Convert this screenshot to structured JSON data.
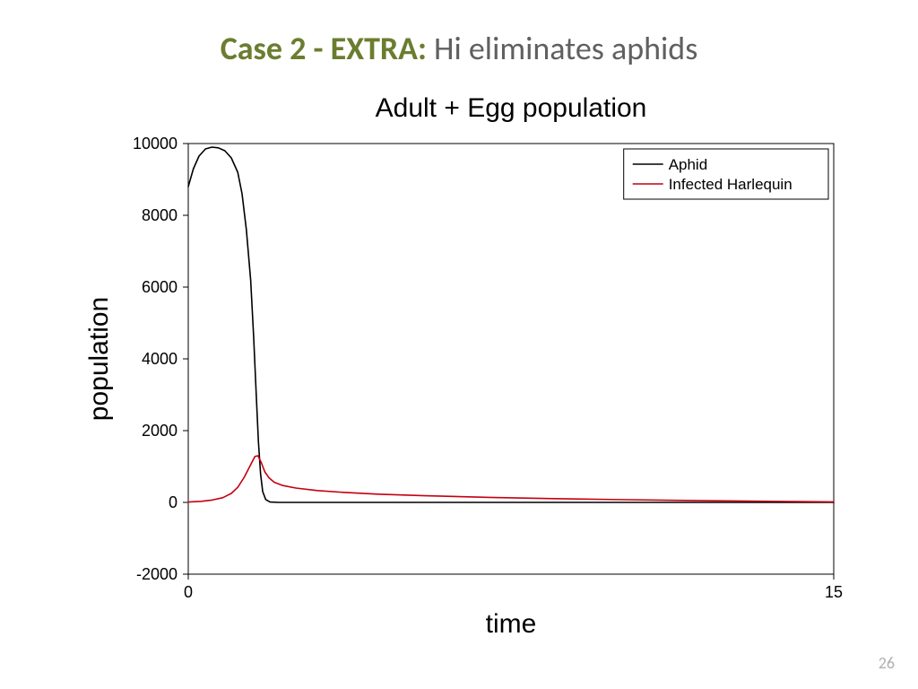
{
  "slide": {
    "title_accent": "Case 2 - EXTRA:",
    "title_rest": " Hi eliminates aphids",
    "accent_color": "#6b7d2f",
    "text_color": "#606060",
    "page_number": "26"
  },
  "chart": {
    "type": "line",
    "title": "Adult + Egg population",
    "title_fontsize": 30,
    "title_fontfamily": "Arial, Helvetica, sans-serif",
    "xlabel": "time",
    "ylabel": "population",
    "label_fontsize": 30,
    "tick_fontsize": 18,
    "tick_fontfamily": "Arial, Helvetica, sans-serif",
    "background_color": "#ffffff",
    "axis_color": "#000000",
    "box_linewidth": 1,
    "line_width": 1.6,
    "xlim": [
      0,
      15
    ],
    "ylim": [
      -2000,
      10000
    ],
    "xticks": [
      0,
      15
    ],
    "yticks": [
      -2000,
      0,
      2000,
      4000,
      6000,
      8000,
      10000
    ],
    "legend": {
      "position": "top-right",
      "border_color": "#000000",
      "bg": "#ffffff",
      "fontsize": 17,
      "items": [
        {
          "label": "Aphid",
          "color": "#000000"
        },
        {
          "label": "Infected Harlequin",
          "color": "#c4000f"
        }
      ]
    },
    "series": [
      {
        "name": "Aphid",
        "color": "#000000",
        "points": [
          [
            0.0,
            8800
          ],
          [
            0.12,
            9300
          ],
          [
            0.25,
            9650
          ],
          [
            0.4,
            9850
          ],
          [
            0.55,
            9900
          ],
          [
            0.7,
            9880
          ],
          [
            0.85,
            9800
          ],
          [
            1.0,
            9600
          ],
          [
            1.15,
            9200
          ],
          [
            1.25,
            8600
          ],
          [
            1.35,
            7600
          ],
          [
            1.45,
            6200
          ],
          [
            1.52,
            4600
          ],
          [
            1.58,
            3000
          ],
          [
            1.63,
            1700
          ],
          [
            1.68,
            800
          ],
          [
            1.73,
            300
          ],
          [
            1.8,
            80
          ],
          [
            1.9,
            10
          ],
          [
            2.1,
            0
          ],
          [
            3.0,
            0
          ],
          [
            5.0,
            0
          ],
          [
            8.0,
            0
          ],
          [
            12.0,
            0
          ],
          [
            15.0,
            0
          ]
        ]
      },
      {
        "name": "Infected Harlequin",
        "color": "#c4000f",
        "points": [
          [
            0.0,
            10
          ],
          [
            0.3,
            30
          ],
          [
            0.55,
            65
          ],
          [
            0.8,
            130
          ],
          [
            1.0,
            250
          ],
          [
            1.15,
            420
          ],
          [
            1.3,
            700
          ],
          [
            1.45,
            1050
          ],
          [
            1.55,
            1280
          ],
          [
            1.62,
            1300
          ],
          [
            1.7,
            1100
          ],
          [
            1.78,
            850
          ],
          [
            1.88,
            680
          ],
          [
            2.0,
            560
          ],
          [
            2.2,
            470
          ],
          [
            2.5,
            400
          ],
          [
            3.0,
            330
          ],
          [
            3.6,
            280
          ],
          [
            4.4,
            230
          ],
          [
            5.5,
            185
          ],
          [
            7.0,
            140
          ],
          [
            8.5,
            105
          ],
          [
            10.0,
            78
          ],
          [
            12.0,
            48
          ],
          [
            14.0,
            25
          ],
          [
            15.0,
            15
          ]
        ]
      }
    ]
  }
}
